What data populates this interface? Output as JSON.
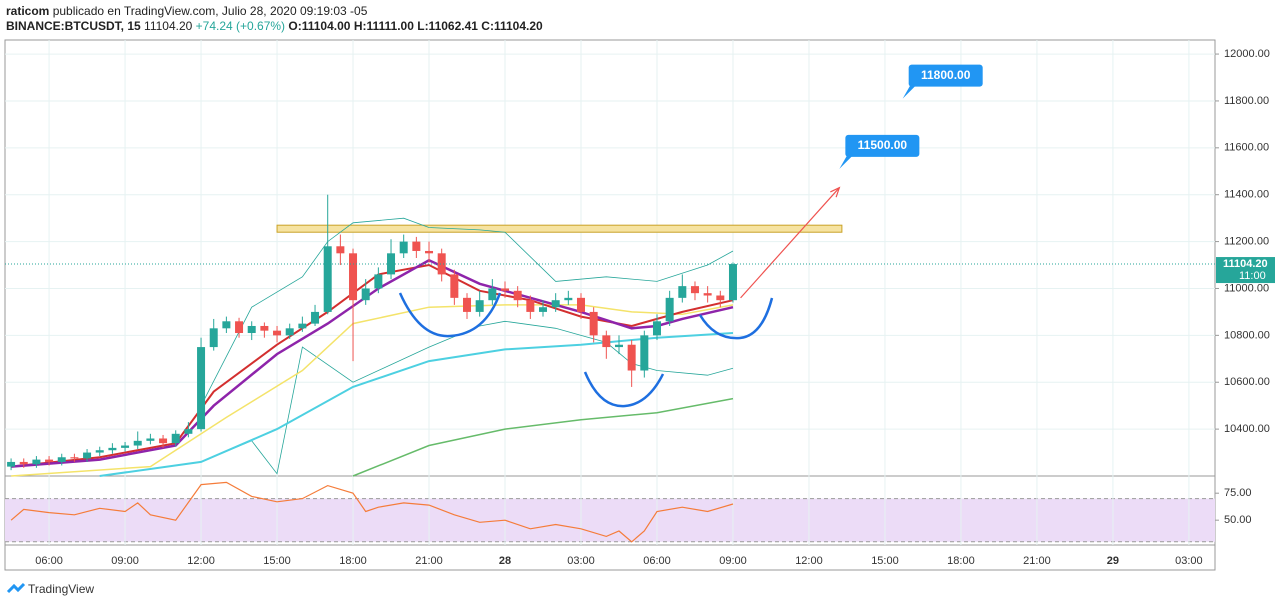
{
  "header": {
    "author": "raticom",
    "published": "publicado en TradingView.com, Julio 28, 2020 09:19:03 -05",
    "symbol": "BINANCE:BTCUSDT, 15",
    "last": "11104.20",
    "change": "+74.24 (+0.67%)",
    "open": "O:11104.00",
    "high": "H:11111.00",
    "low": "L:11062.41",
    "close": "C:11104.20"
  },
  "footer": {
    "brand": "TradingView"
  },
  "chart_data": [
    {
      "type": "candlestick",
      "up_color": "#26a69a",
      "down_color": "#ef5350",
      "xlim": [
        4.26,
        52.03
      ],
      "xticks": [
        {
          "value": 6,
          "label": "06:00"
        },
        {
          "value": 9,
          "label": "09:00"
        },
        {
          "value": 12,
          "label": "12:00"
        },
        {
          "value": 15,
          "label": "15:00"
        },
        {
          "value": 18,
          "label": "18:00"
        },
        {
          "value": 21,
          "label": "21:00"
        },
        {
          "value": 24,
          "label": "28"
        },
        {
          "value": 27,
          "label": "03:00"
        },
        {
          "value": 30,
          "label": "06:00"
        },
        {
          "value": 33,
          "label": "09:00"
        },
        {
          "value": 36,
          "label": "12:00"
        },
        {
          "value": 39,
          "label": "15:00"
        },
        {
          "value": 42,
          "label": "18:00"
        },
        {
          "value": 45,
          "label": "21:00"
        },
        {
          "value": 48,
          "label": "29"
        },
        {
          "value": 51,
          "label": "03:00"
        }
      ],
      "ylim": [
        10200,
        12060
      ],
      "yticks": [
        {
          "value": 10400,
          "label": "10400.00"
        },
        {
          "value": 10600,
          "label": "10600.00"
        },
        {
          "value": 10800,
          "label": "10800.00"
        },
        {
          "value": 11000,
          "label": "11000.00"
        },
        {
          "value": 11200,
          "label": "11200.00"
        },
        {
          "value": 11400,
          "label": "11400.00"
        },
        {
          "value": 11600,
          "label": "11600.00"
        },
        {
          "value": 11800,
          "label": "11800.00"
        },
        {
          "value": 12000,
          "label": "12000.00"
        }
      ],
      "grid": true,
      "x": [
        4.5,
        5,
        5.5,
        6,
        6.5,
        7,
        7.5,
        8,
        8.5,
        9,
        9.5,
        10,
        10.5,
        11,
        11.5,
        12,
        12.5,
        13,
        13.5,
        14,
        14.5,
        15,
        15.5,
        16,
        16.5,
        17,
        17.5,
        18,
        18.5,
        19,
        19.5,
        20,
        20.5,
        21,
        21.5,
        22,
        22.5,
        23,
        23.5,
        24,
        24.5,
        25,
        25.5,
        26,
        26.5,
        27,
        27.5,
        28,
        28.5,
        29,
        29.5,
        30,
        30.5,
        31,
        31.5,
        32,
        32.5,
        33
      ],
      "ohlc": [
        [
          10240,
          10275,
          10225,
          10260
        ],
        [
          10260,
          10275,
          10235,
          10250
        ],
        [
          10250,
          10285,
          10235,
          10270
        ],
        [
          10270,
          10285,
          10245,
          10260
        ],
        [
          10260,
          10295,
          10245,
          10280
        ],
        [
          10280,
          10295,
          10260,
          10275
        ],
        [
          10275,
          10315,
          10260,
          10300
        ],
        [
          10300,
          10325,
          10285,
          10310
        ],
        [
          10310,
          10340,
          10295,
          10320
        ],
        [
          10320,
          10345,
          10305,
          10330
        ],
        [
          10330,
          10390,
          10315,
          10350
        ],
        [
          10350,
          10380,
          10335,
          10360
        ],
        [
          10360,
          10375,
          10320,
          10340
        ],
        [
          10340,
          10395,
          10325,
          10380
        ],
        [
          10380,
          10430,
          10365,
          10400
        ],
        [
          10400,
          10790,
          10390,
          10750
        ],
        [
          10750,
          10870,
          10735,
          10830
        ],
        [
          10830,
          10880,
          10810,
          10860
        ],
        [
          10860,
          10875,
          10790,
          10810
        ],
        [
          10810,
          10860,
          10780,
          10840
        ],
        [
          10840,
          10855,
          10790,
          10820
        ],
        [
          10820,
          10840,
          10770,
          10800
        ],
        [
          10800,
          10850,
          10785,
          10830
        ],
        [
          10830,
          10880,
          10815,
          10850
        ],
        [
          10850,
          10930,
          10840,
          10900
        ],
        [
          10900,
          11400,
          10890,
          11180
        ],
        [
          11180,
          11230,
          11100,
          11150
        ],
        [
          11150,
          11170,
          10690,
          10950
        ],
        [
          10950,
          11040,
          10930,
          11000
        ],
        [
          11000,
          11090,
          10980,
          11060
        ],
        [
          11060,
          11210,
          11040,
          11150
        ],
        [
          11150,
          11230,
          11130,
          11200
        ],
        [
          11200,
          11220,
          11130,
          11160
        ],
        [
          11160,
          11200,
          11110,
          11150
        ],
        [
          11150,
          11170,
          11030,
          11060
        ],
        [
          11060,
          11080,
          10930,
          10960
        ],
        [
          10960,
          10980,
          10870,
          10900
        ],
        [
          10900,
          10990,
          10880,
          10950
        ],
        [
          10950,
          11040,
          10930,
          11000
        ],
        [
          11000,
          11030,
          10960,
          10990
        ],
        [
          10990,
          11010,
          10920,
          10950
        ],
        [
          10950,
          10970,
          10870,
          10900
        ],
        [
          10900,
          10950,
          10880,
          10920
        ],
        [
          10920,
          10980,
          10900,
          10950
        ],
        [
          10950,
          10990,
          10930,
          10960
        ],
        [
          10960,
          10980,
          10870,
          10900
        ],
        [
          10900,
          10920,
          10770,
          10800
        ],
        [
          10800,
          10820,
          10700,
          10750
        ],
        [
          10750,
          10800,
          10720,
          10760
        ],
        [
          10760,
          10780,
          10580,
          10650
        ],
        [
          10650,
          10820,
          10620,
          10800
        ],
        [
          10800,
          10890,
          10780,
          10860
        ],
        [
          10860,
          10990,
          10840,
          10960
        ],
        [
          10960,
          11060,
          10940,
          11010
        ],
        [
          11010,
          11030,
          10950,
          10980
        ],
        [
          10980,
          11010,
          10940,
          10970
        ],
        [
          10970,
          10990,
          10920,
          10950
        ],
        [
          10950,
          11111,
          10940,
          11104.2
        ]
      ],
      "overlays": [
        {
          "color": "#26a69a",
          "width": 0.8,
          "x": [
            12,
            14,
            16,
            17,
            18,
            20,
            21,
            23,
            24,
            26,
            28,
            30,
            32,
            33
          ],
          "values": [
            10500,
            10920,
            11050,
            11200,
            11280,
            11300,
            11260,
            11250,
            11240,
            11030,
            11050,
            11030,
            11100,
            11160
          ]
        },
        {
          "color": "#26a69a",
          "width": 0.8,
          "x": [
            12,
            14,
            15,
            16,
            18,
            21,
            23,
            24,
            26,
            27,
            28,
            29,
            30,
            32,
            33
          ],
          "values": [
            10260,
            10350,
            10210,
            10750,
            10600,
            10750,
            10840,
            10860,
            10830,
            10800,
            10770,
            10680,
            10650,
            10630,
            10660
          ]
        },
        {
          "color": "#66bb6a",
          "width": 1.5,
          "x": [
            18,
            21,
            24,
            27,
            30,
            33
          ],
          "values": [
            10200,
            10330,
            10400,
            10440,
            10470,
            10530
          ]
        },
        {
          "color": "#4dd0e1",
          "width": 2,
          "x": [
            8,
            12,
            15,
            18,
            21,
            24,
            27,
            30,
            33
          ],
          "values": [
            10200,
            10260,
            10400,
            10580,
            10690,
            10740,
            10760,
            10790,
            10810
          ]
        },
        {
          "color": "#f4e36a",
          "width": 1.5,
          "x": [
            4.5,
            10,
            13,
            16,
            18,
            21,
            24,
            27,
            29,
            31,
            33
          ],
          "values": [
            10200,
            10240,
            10450,
            10650,
            10850,
            10920,
            10930,
            10930,
            10900,
            10890,
            10930
          ]
        },
        {
          "color": "#d32f2f",
          "width": 2,
          "x": [
            4.5,
            8,
            11,
            12.5,
            15,
            17,
            19,
            21,
            23,
            25,
            27,
            29,
            30,
            31,
            33
          ],
          "values": [
            10240,
            10280,
            10340,
            10560,
            10760,
            10900,
            11060,
            11100,
            10990,
            10950,
            10880,
            10840,
            10870,
            10900,
            10950
          ]
        },
        {
          "color": "#8e24aa",
          "width": 2.5,
          "x": [
            4.5,
            8,
            11,
            12.5,
            15,
            17,
            19,
            21,
            23,
            25,
            27,
            29,
            30,
            31,
            33
          ],
          "values": [
            10240,
            10270,
            10330,
            10500,
            10720,
            10850,
            11000,
            11120,
            11020,
            10960,
            10900,
            10830,
            10840,
            10870,
            10920
          ]
        }
      ],
      "resistance": {
        "x": [
          15,
          37.3
        ],
        "y": [
          11240,
          11270
        ],
        "color": "#f6e3a1"
      },
      "arrow": {
        "x": [
          33.3,
          37.2
        ],
        "y": [
          10960,
          11430
        ],
        "color": "#ef5350"
      },
      "annotations": [
        {
          "label": "11800.00",
          "x": 39.7,
          "y": 11810
        },
        {
          "label": "11500.00",
          "x": 37.2,
          "y": 11510
        }
      ],
      "annotation_color": "#2196f3",
      "last_price": {
        "value": 11104.2,
        "label": "11104.20"
      },
      "countdown": "11:00"
    },
    {
      "type": "line",
      "ylim": [
        27,
        90
      ],
      "yticks": [
        {
          "value": 50,
          "label": "50.00"
        },
        {
          "value": 75,
          "label": "75.00"
        }
      ],
      "band": [
        30,
        70
      ],
      "band_color": "#ecdcf7",
      "color": "#f57c3a",
      "x": [
        4.5,
        5,
        6,
        7,
        8,
        9,
        9.5,
        10,
        11,
        12,
        13,
        14,
        15,
        16,
        17,
        18,
        18.5,
        19,
        20,
        21,
        22,
        23,
        24,
        25,
        26,
        27,
        28,
        28.5,
        29,
        29.5,
        30,
        31,
        32,
        33
      ],
      "values": [
        50,
        60,
        57,
        55,
        61,
        58,
        66,
        55,
        50,
        83,
        85,
        72,
        67,
        70,
        82,
        75,
        58,
        62,
        66,
        64,
        55,
        48,
        50,
        42,
        46,
        42,
        35,
        40,
        30,
        40,
        58,
        62,
        58,
        65
      ]
    }
  ]
}
